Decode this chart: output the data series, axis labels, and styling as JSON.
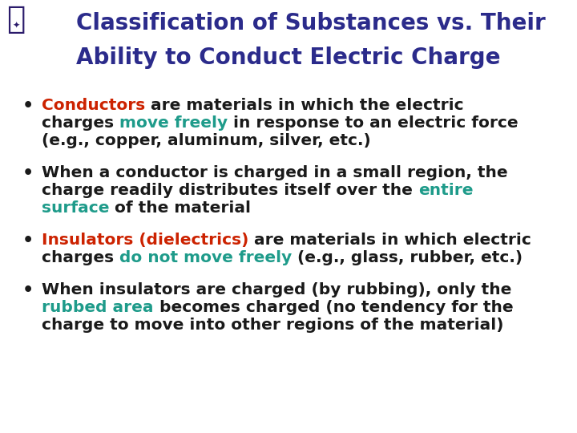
{
  "title_line1": "Classification of Substances vs. Their",
  "title_line2": "Ability to Conduct Electric Charge",
  "title_color": "#2B2B8B",
  "bg_color": "#FFFFFF",
  "red_color": "#CC2200",
  "teal_color": "#1E9B8A",
  "black_color": "#1A1A1A",
  "title_fontsize": 20,
  "body_fontsize": 14.5,
  "bullet_fontsize": 16,
  "bullets": [
    {
      "segments": [
        [
          {
            "text": "Conductors",
            "color": "#CC2200",
            "bold": true
          },
          {
            "text": " are materials in which the electric",
            "color": "#1A1A1A",
            "bold": true
          }
        ],
        [
          {
            "text": "charges ",
            "color": "#1A1A1A",
            "bold": true
          },
          {
            "text": "move freely",
            "color": "#1E9B8A",
            "bold": true
          },
          {
            "text": " in response to an electric force",
            "color": "#1A1A1A",
            "bold": true
          }
        ],
        [
          {
            "text": "(e.g., copper, aluminum, silver, etc.)",
            "color": "#1A1A1A",
            "bold": true
          }
        ]
      ]
    },
    {
      "segments": [
        [
          {
            "text": "When a conductor is charged in a small region, the",
            "color": "#1A1A1A",
            "bold": true
          }
        ],
        [
          {
            "text": "charge readily distributes itself over the ",
            "color": "#1A1A1A",
            "bold": true
          },
          {
            "text": "entire",
            "color": "#1E9B8A",
            "bold": true
          }
        ],
        [
          {
            "text": "surface",
            "color": "#1E9B8A",
            "bold": true
          },
          {
            "text": " of the material",
            "color": "#1A1A1A",
            "bold": true
          }
        ]
      ]
    },
    {
      "segments": [
        [
          {
            "text": "Insulators (dielectrics)",
            "color": "#CC2200",
            "bold": true
          },
          {
            "text": " are materials in which electric",
            "color": "#1A1A1A",
            "bold": true
          }
        ],
        [
          {
            "text": "charges ",
            "color": "#1A1A1A",
            "bold": true
          },
          {
            "text": "do not move freely",
            "color": "#1E9B8A",
            "bold": true
          },
          {
            "text": " (e.g., glass, rubber, etc.)",
            "color": "#1A1A1A",
            "bold": true
          }
        ]
      ]
    },
    {
      "segments": [
        [
          {
            "text": "When insulators are charged (by rubbing), only the",
            "color": "#1A1A1A",
            "bold": true
          }
        ],
        [
          {
            "text": "rubbed area",
            "color": "#1E9B8A",
            "bold": true
          },
          {
            "text": " becomes charged (no tendency for the",
            "color": "#1A1A1A",
            "bold": true
          }
        ],
        [
          {
            "text": "charge to move into other regions of the material)",
            "color": "#1A1A1A",
            "bold": true
          }
        ]
      ]
    }
  ]
}
